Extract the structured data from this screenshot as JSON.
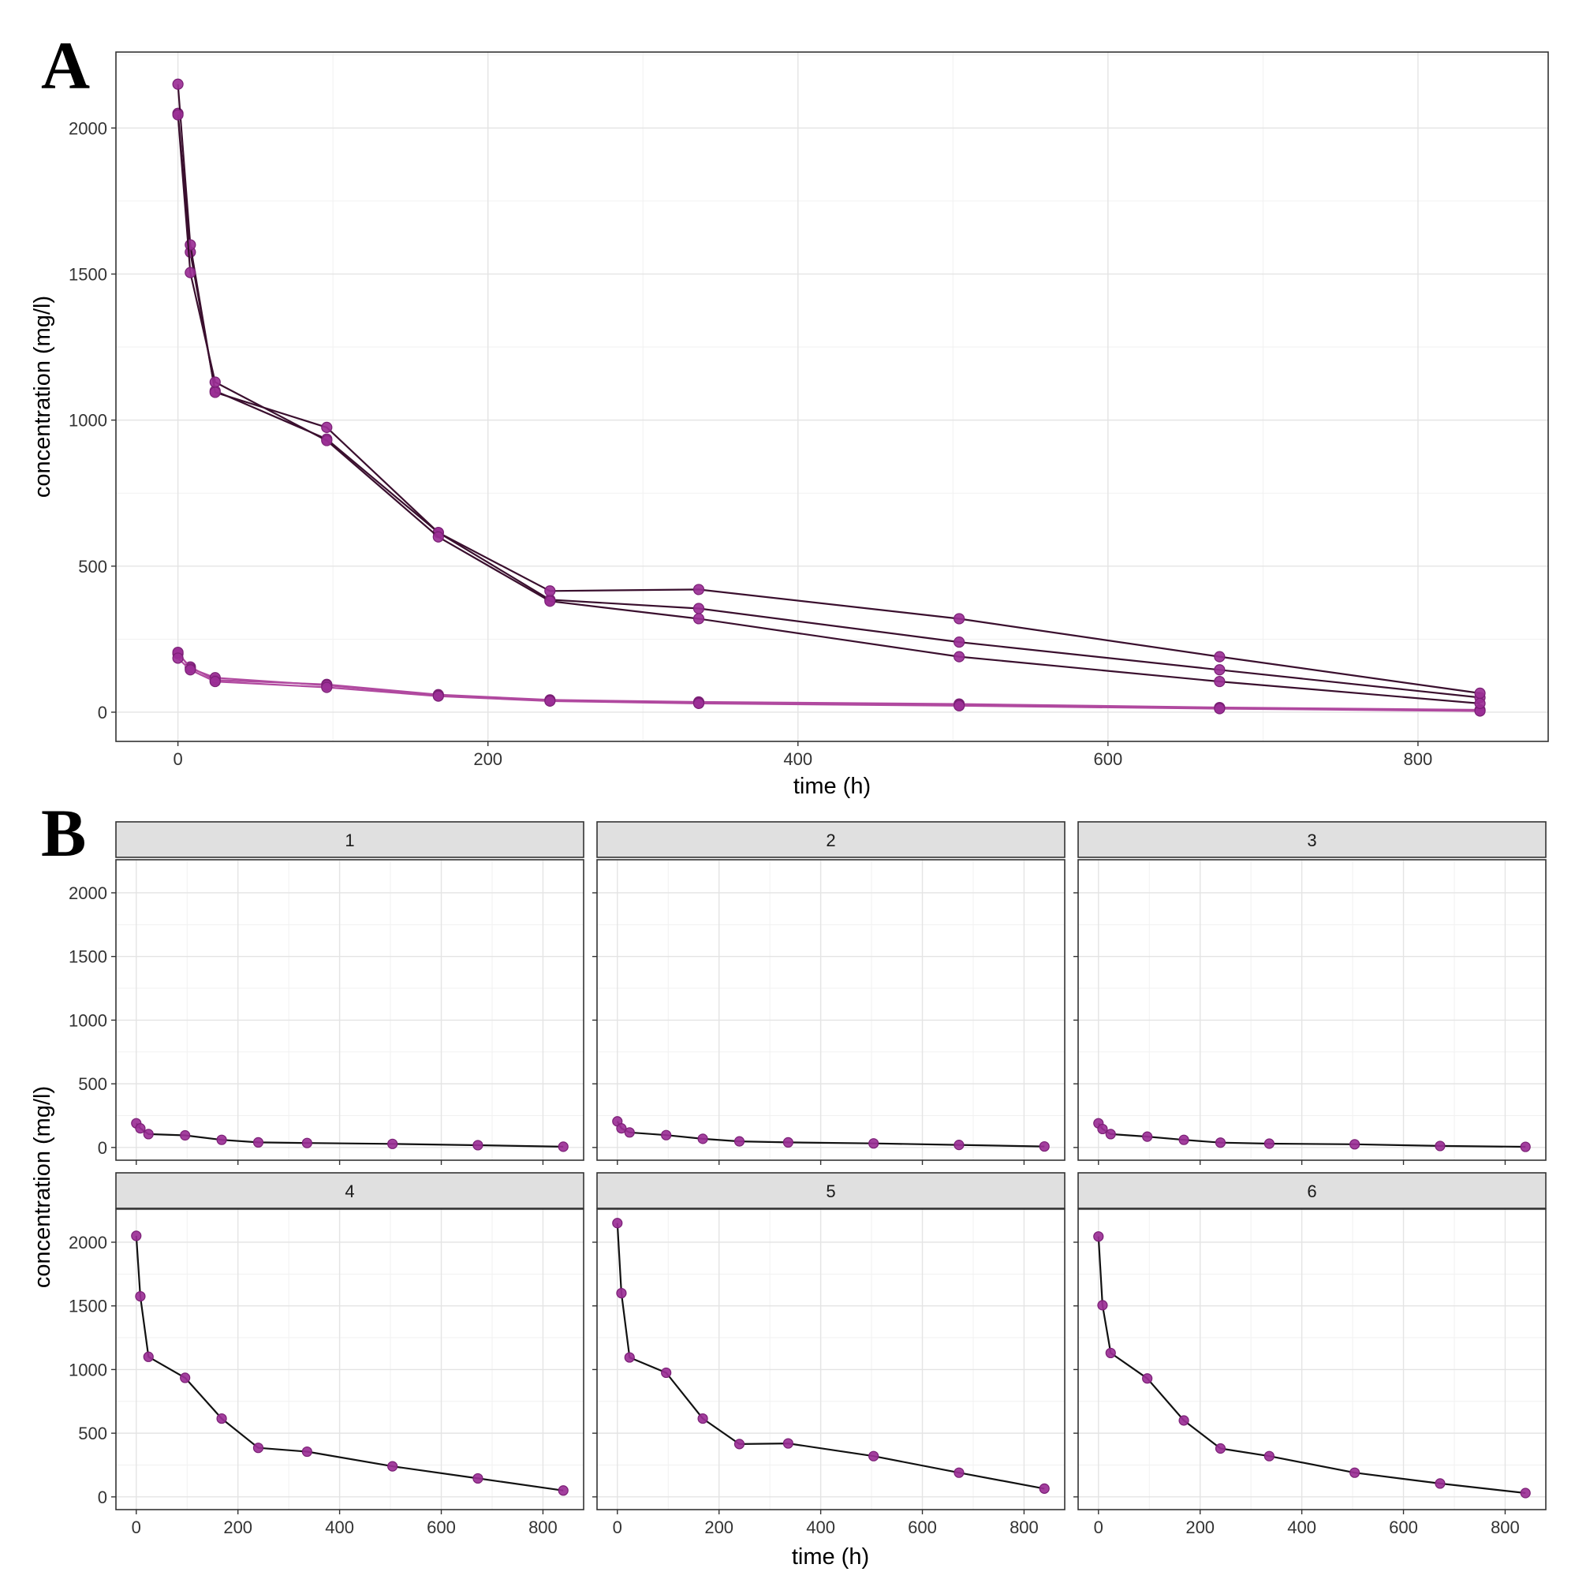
{
  "panels": {
    "A": {
      "letter": "A"
    },
    "B": {
      "letter": "B"
    }
  },
  "colors": {
    "point_fill": "#9b2f96",
    "point_stroke": "#7a1f75",
    "line_dark": "#3a0f2e",
    "line_light": "#b0499f",
    "grid_major": "#e4e4e4",
    "grid_minor": "#f1f1f1",
    "strip_fill": "#e0e0e0"
  },
  "chart_data": [
    {
      "id": "A",
      "type": "line",
      "xlabel": "time (h)",
      "ylabel": "concentration (mg/l)",
      "xlim": [
        -40,
        884
      ],
      "ylim": [
        -100,
        2260
      ],
      "xticks": [
        0,
        200,
        400,
        600,
        800
      ],
      "yticks": [
        0,
        500,
        1000,
        1500,
        2000
      ],
      "grid": true,
      "series": [
        {
          "x": [
            0,
            8,
            24,
            96,
            168,
            240,
            336,
            504,
            672,
            840
          ],
          "y": [
            200,
            155,
            110,
            95,
            60,
            42,
            35,
            28,
            16,
            8
          ]
        },
        {
          "x": [
            0,
            8,
            24,
            96,
            168,
            240,
            336,
            504,
            672,
            840
          ],
          "y": [
            205,
            150,
            118,
            92,
            58,
            40,
            32,
            25,
            14,
            6
          ]
        },
        {
          "x": [
            0,
            8,
            24,
            96,
            168,
            240,
            336,
            504,
            672,
            840
          ],
          "y": [
            185,
            145,
            105,
            85,
            55,
            38,
            30,
            22,
            12,
            4
          ]
        },
        {
          "x": [
            0,
            8,
            24,
            96,
            168,
            240,
            336,
            504,
            672,
            840
          ],
          "y": [
            2050,
            1575,
            1100,
            935,
            615,
            385,
            355,
            240,
            145,
            50
          ]
        },
        {
          "x": [
            0,
            8,
            24,
            96,
            168,
            240,
            336,
            504,
            672,
            840
          ],
          "y": [
            2150,
            1600,
            1095,
            975,
            615,
            415,
            420,
            320,
            190,
            65
          ]
        },
        {
          "x": [
            0,
            8,
            24,
            96,
            168,
            240,
            336,
            504,
            672,
            840
          ],
          "y": [
            2045,
            1505,
            1130,
            930,
            600,
            380,
            320,
            190,
            105,
            30
          ]
        }
      ]
    },
    {
      "id": "B",
      "type": "line",
      "xlabel": "time (h)",
      "ylabel": "concentration (mg/l)",
      "xlim": [
        -40,
        880
      ],
      "ylim": [
        -100,
        2260
      ],
      "xticks": [
        0,
        200,
        400,
        600,
        800
      ],
      "yticks": [
        0,
        500,
        1000,
        1500,
        2000
      ],
      "grid": true,
      "facets": [
        {
          "label": "1",
          "x": [
            0,
            8,
            24,
            96,
            168,
            240,
            336,
            504,
            672,
            840
          ],
          "y": [
            190,
            150,
            105,
            95,
            60,
            40,
            35,
            28,
            18,
            6
          ]
        },
        {
          "label": "2",
          "x": [
            0,
            8,
            24,
            96,
            168,
            240,
            336,
            504,
            672,
            840
          ],
          "y": [
            205,
            150,
            118,
            97,
            68,
            48,
            40,
            32,
            20,
            8
          ]
        },
        {
          "label": "3",
          "x": [
            0,
            8,
            24,
            96,
            168,
            240,
            336,
            504,
            672,
            840
          ],
          "y": [
            190,
            145,
            105,
            85,
            60,
            38,
            30,
            25,
            12,
            5
          ]
        },
        {
          "label": "4",
          "x": [
            0,
            8,
            24,
            96,
            168,
            240,
            336,
            504,
            672,
            840
          ],
          "y": [
            2050,
            1575,
            1100,
            935,
            615,
            385,
            355,
            240,
            145,
            50
          ]
        },
        {
          "label": "5",
          "x": [
            0,
            8,
            24,
            96,
            168,
            240,
            336,
            504,
            672,
            840
          ],
          "y": [
            2150,
            1600,
            1095,
            975,
            615,
            415,
            420,
            320,
            190,
            65
          ]
        },
        {
          "label": "6",
          "x": [
            0,
            8,
            24,
            96,
            168,
            240,
            336,
            504,
            672,
            840
          ],
          "y": [
            2045,
            1505,
            1130,
            930,
            600,
            380,
            320,
            190,
            105,
            30
          ]
        }
      ]
    }
  ]
}
